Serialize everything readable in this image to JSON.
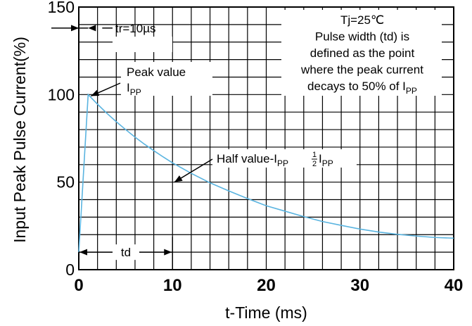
{
  "chart_data": {
    "type": "line",
    "xlabel": "t-Time (ms)",
    "ylabel": "Input Peak Pulse Current(%)",
    "xlim": [
      0,
      40
    ],
    "ylim": [
      0,
      150
    ],
    "x_ticks": [
      "0",
      "10",
      "20",
      "30",
      "40"
    ],
    "y_ticks": [
      "0",
      "50",
      "100",
      "150"
    ],
    "grid": true,
    "series": [
      {
        "color": "#5ab4e0",
        "x": [
          0,
          1,
          2,
          3,
          4,
          5,
          6,
          7,
          8,
          9,
          10,
          12,
          14,
          16,
          18,
          20,
          22,
          24,
          26,
          28,
          30,
          32,
          34,
          36,
          38,
          40
        ],
        "y": [
          10,
          100,
          94.5,
          89.3,
          84.5,
          80,
          75.7,
          71.7,
          68,
          64.4,
          61,
          55,
          49.6,
          45,
          40.6,
          36.5,
          33.4,
          30.3,
          27.5,
          25.3,
          23.2,
          21.5,
          20.2,
          19.2,
          18.4,
          18
        ]
      }
    ],
    "annotations": {
      "rise_label": "tr=10µs",
      "peak_label": "Peak value",
      "peak_symbol": "I",
      "peak_symbol_sub": "PP",
      "half_label": "Half value-I",
      "half_label_sub": "PP",
      "half_frac_num": "1",
      "half_frac_den": "2",
      "half_frac_symbol": "I",
      "half_frac_sub": "PP",
      "td_label": "td",
      "note_lines": [
        "Tj=25℃",
        "Pulse width (td) is",
        "defined as the point",
        "where the peak current",
        "decays to 50% of I"
      ],
      "note_last_sub": "PP"
    }
  }
}
